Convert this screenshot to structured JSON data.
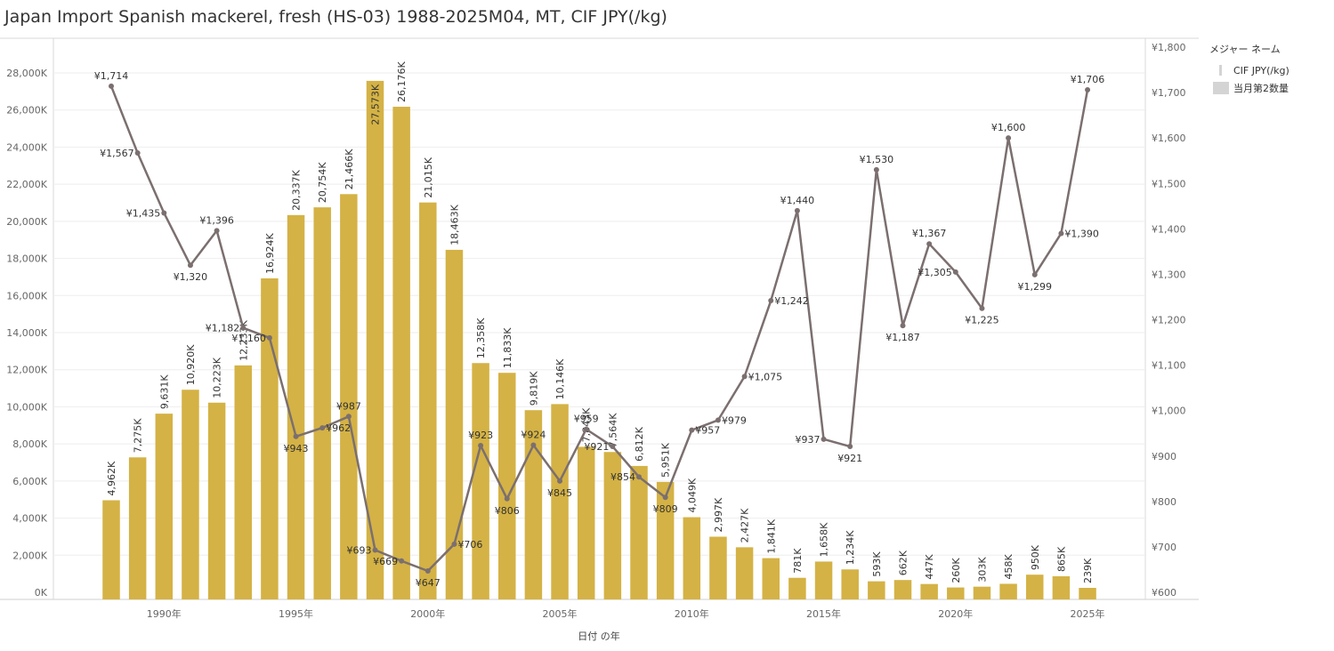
{
  "title": "Japan Import Spanish mackerel, fresh (HS-03) 1988-2025M04, MT, CIF JPY(/kg)",
  "legend": {
    "title": "メジャー ネーム",
    "line_label": "CIF JPY(/kg)",
    "bar_label": "当月第2数量"
  },
  "colors": {
    "bar": "#d4b245",
    "line": "#7b6f6f",
    "grid": "#eeeeee",
    "legend_swatch": "#d4d4d4"
  },
  "chart_data": {
    "type": "bar",
    "title": "Japan Import Spanish mackerel, fresh (HS-03) 1988-2025M04, MT, CIF JPY(/kg)",
    "xlabel": "日付 の年",
    "x_tick_labels": [
      "1990年",
      "1995年",
      "2000年",
      "2005年",
      "2010年",
      "2015年",
      "2020年",
      "2025年"
    ],
    "x_tick_years": [
      1990,
      1995,
      2000,
      2005,
      2010,
      2015,
      2020,
      2025
    ],
    "years": [
      1988,
      1989,
      1990,
      1991,
      1992,
      1993,
      1994,
      1995,
      1996,
      1997,
      1998,
      1999,
      2000,
      2001,
      2002,
      2003,
      2004,
      2005,
      2006,
      2007,
      2008,
      2009,
      2010,
      2011,
      2012,
      2013,
      2014,
      2015,
      2016,
      2017,
      2018,
      2019,
      2020,
      2021,
      2022,
      2023,
      2024,
      2025
    ],
    "left_axis": {
      "ylim": [
        0,
        29000
      ],
      "ticks": [
        0,
        2000,
        4000,
        6000,
        8000,
        10000,
        12000,
        14000,
        16000,
        18000,
        20000,
        22000,
        24000,
        26000,
        28000
      ],
      "tick_labels": [
        "0K",
        "2,000K",
        "4,000K",
        "6,000K",
        "8,000K",
        "10,000K",
        "12,000K",
        "14,000K",
        "16,000K",
        "18,000K",
        "20,000K",
        "22,000K",
        "24,000K",
        "26,000K",
        "28,000K"
      ]
    },
    "right_axis": {
      "ylim": [
        600,
        1800
      ],
      "ticks": [
        600,
        700,
        800,
        900,
        1000,
        1100,
        1200,
        1300,
        1400,
        1500,
        1600,
        1700,
        1800
      ],
      "tick_labels": [
        "¥600",
        "¥700",
        "¥800",
        "¥900",
        "¥1,000",
        "¥1,100",
        "¥1,200",
        "¥1,300",
        "¥1,400",
        "¥1,500",
        "¥1,600",
        "¥1,700",
        "¥1,800"
      ]
    },
    "series": [
      {
        "name": "当月第2数量",
        "type": "bar",
        "axis": "left",
        "values": [
          4962,
          7275,
          9631,
          10920,
          10223,
          12233,
          16924,
          20337,
          20754,
          21466,
          27573,
          26176,
          21015,
          18463,
          12358,
          11833,
          9819,
          10146,
          7843,
          7564,
          6812,
          5951,
          4049,
          2997,
          2427,
          1841,
          781,
          1658,
          1234,
          593,
          662,
          447,
          260,
          303,
          458,
          950,
          865,
          239
        ],
        "labels": [
          "4,962K",
          "7,275K",
          "9,631K",
          "10,920K",
          "10,223K",
          "12,233K",
          "16,924K",
          "20,337K",
          "20,754K",
          "21,466K",
          "27,573K",
          "26,176K",
          "21,015K",
          "18,463K",
          "12,358K",
          "11,833K",
          "9,819K",
          "10,146K",
          "7,843K",
          "7,564K",
          "6,812K",
          "5,951K",
          "4,049K",
          "2,997K",
          "2,427K",
          "1,841K",
          "781K",
          "1,658K",
          "1,234K",
          "593K",
          "662K",
          "447K",
          "260K",
          "303K",
          "458K",
          "950K",
          "865K",
          "239K"
        ]
      },
      {
        "name": "CIF JPY(/kg)",
        "type": "line",
        "axis": "right",
        "values": [
          1714,
          1567,
          1435,
          1320,
          1396,
          1182,
          1160,
          943,
          962,
          987,
          693,
          669,
          647,
          706,
          923,
          806,
          924,
          845,
          959,
          921,
          854,
          809,
          957,
          979,
          1075,
          1242,
          1440,
          937,
          921,
          1530,
          1187,
          1367,
          1305,
          1225,
          1600,
          1299,
          1390,
          1706
        ],
        "labels": [
          "¥1,714",
          "¥1,567",
          "¥1,435",
          "¥1,320",
          "¥1,396",
          "¥1,182",
          "¥1,160",
          "¥943",
          "¥962",
          "¥987",
          "¥693",
          "¥669",
          "¥647",
          "¥706",
          "¥923",
          "¥806",
          "¥924",
          "¥845",
          "¥959",
          "¥921",
          "¥854",
          "¥809",
          "¥957",
          "¥979",
          "¥1,075",
          "¥1,242",
          "¥1,440",
          "¥937",
          "¥921",
          "¥1,530",
          "¥1,187",
          "¥1,367",
          "¥1,305",
          "¥1,225",
          "¥1,600",
          "¥1,299",
          "¥1,390",
          "¥1,706"
        ]
      }
    ]
  }
}
